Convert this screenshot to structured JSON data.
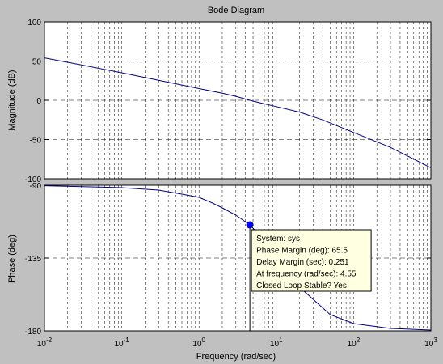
{
  "chart_data": {
    "type": "line",
    "title": "Bode Diagram",
    "xlabel": "Frequency  (rad/sec)",
    "x_scale": "log",
    "xlim": [
      0.01,
      1000
    ],
    "x_tick_values": [
      0.01,
      0.1,
      1,
      10,
      100,
      1000
    ],
    "x_tick_labels": [
      {
        "base": "10",
        "exp": "-2"
      },
      {
        "base": "10",
        "exp": "-1"
      },
      {
        "base": "10",
        "exp": "0"
      },
      {
        "base": "10",
        "exp": "1"
      },
      {
        "base": "10",
        "exp": "2"
      },
      {
        "base": "10",
        "exp": "3"
      }
    ],
    "grid": true,
    "line_color": "#000080",
    "background_color": "#ffffff",
    "figure_color": "#c0c0c0",
    "magnitude": {
      "ylabel": "Magnitude (dB)",
      "ylim": [
        -100,
        100
      ],
      "yticks": [
        -100,
        -50,
        0,
        50,
        100
      ],
      "ytick_labels": [
        "-100",
        "-50",
        "0",
        "50",
        "100"
      ],
      "zero_line": 0,
      "series": [
        {
          "x": [
            0.01,
            0.03,
            0.1,
            0.3,
            1,
            2,
            3,
            4.55,
            6,
            10,
            20,
            40,
            100,
            300,
            1000
          ],
          "y": [
            54,
            45,
            35,
            25.5,
            15,
            9,
            5,
            0,
            -3,
            -8,
            -15,
            -25,
            -41,
            -60,
            -86
          ]
        }
      ]
    },
    "phase": {
      "ylabel": "Phase (deg)",
      "ylim": [
        -180,
        -90
      ],
      "yticks": [
        -180,
        -135,
        -90
      ],
      "ytick_labels": [
        "-180",
        "-135",
        "-90"
      ],
      "ref_line": -180,
      "series": [
        {
          "x": [
            0.01,
            0.1,
            0.3,
            0.6,
            1,
            1.5,
            2,
            3,
            4.55,
            7,
            10,
            20,
            50,
            100,
            300,
            1000
          ],
          "y": [
            -90.3,
            -91.5,
            -93,
            -95.5,
            -97.5,
            -101,
            -104,
            -108.5,
            -114.5,
            -124,
            -133,
            -153,
            -170,
            -175.5,
            -178.5,
            -179.5
          ]
        }
      ]
    },
    "marker": {
      "x": 4.55,
      "y": -114.5
    },
    "datatip": {
      "lines": [
        "System: sys",
        "Phase Margin (deg): 65.5",
        "Delay Margin (sec): 0.251",
        "At frequency (rad/sec): 4.55",
        "Closed Loop Stable? Yes"
      ],
      "background": "#ffffe1"
    }
  }
}
